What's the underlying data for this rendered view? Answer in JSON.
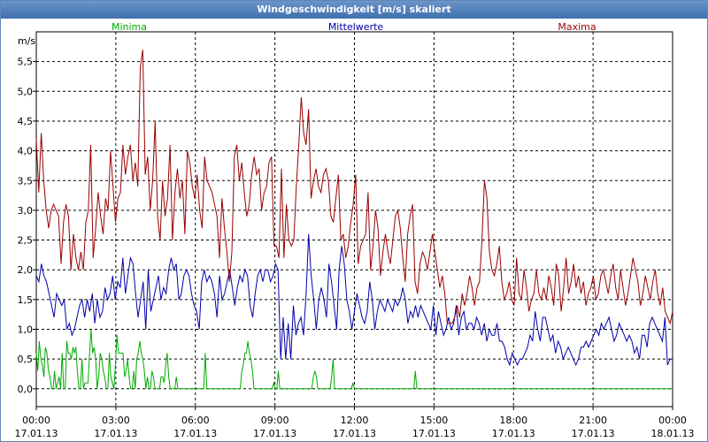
{
  "window": {
    "title": "Windgeschwindigkeit [m/s] skaliert"
  },
  "colors": {
    "minima": "#00aa00",
    "mittelwerte": "#0000aa",
    "maxima": "#990000",
    "grid": "#000000"
  },
  "chart_data": {
    "type": "line",
    "title": "Windgeschwindigkeit [m/s] skaliert",
    "ylabel": "m/s",
    "xlabel": "",
    "ylim": [
      -0.3,
      6.0
    ],
    "xlim": [
      "17.01.13 00:00",
      "18.01.13 00:00"
    ],
    "grid": true,
    "legend_placement": "top",
    "y_ticks": [
      "0,0",
      "0,5",
      "1,0",
      "1,5",
      "2,0",
      "2,5",
      "3,0",
      "3,5",
      "4,0",
      "4,5",
      "5,0",
      "5,5"
    ],
    "x_ticks": [
      {
        "time": "00:00",
        "date": "17.01.13"
      },
      {
        "time": "03:00",
        "date": "17.01.13"
      },
      {
        "time": "06:00",
        "date": "17.01.13"
      },
      {
        "time": "09:00",
        "date": "17.01.13"
      },
      {
        "time": "12:00",
        "date": "17.01.13"
      },
      {
        "time": "15:00",
        "date": "17.01.13"
      },
      {
        "time": "18:00",
        "date": "17.01.13"
      },
      {
        "time": "21:00",
        "date": "17.01.13"
      },
      {
        "time": "00:00",
        "date": "18.01.13"
      }
    ],
    "x_start": "17.01.13 00:00",
    "x_step": "10 min",
    "series": [
      {
        "name": "Minima",
        "color": "#00aa00",
        "values": [
          0.6,
          0.3,
          0.8,
          0.5,
          0.4,
          0.2,
          0.7,
          0.6,
          0.3,
          0.2,
          0.0,
          0.0,
          0.3,
          0.0,
          0.1,
          0.2,
          0.0,
          0.6,
          0.0,
          0.0,
          0.8,
          0.6,
          0.6,
          0.5,
          0.7,
          0.6,
          0.7,
          0.3,
          0.0,
          0.0,
          0.5,
          0.0,
          0.1,
          0.1,
          0.1,
          0.6,
          1.0,
          0.6,
          0.7,
          0.5,
          0.0,
          0.2,
          0.6,
          0.5,
          0.3,
          0.2,
          0.0,
          0.0,
          0.6,
          0.2,
          0.1,
          0.0,
          0.4,
          0.9,
          0.6,
          0.6,
          0.6,
          0.6,
          0.2,
          0.3,
          0.5,
          0.2,
          0.0,
          0.0,
          0.3,
          0.0,
          0.5,
          0.6,
          0.8,
          0.6,
          0.5,
          0.3,
          0.0,
          0.2,
          0.0,
          0.0,
          0.3,
          0.2,
          0.0,
          0.0,
          0.0,
          0.0,
          0.2,
          0.2,
          0.1,
          0.4,
          0.6,
          0.2,
          0.0,
          0.0,
          0.0,
          0.0,
          0.2,
          0.0,
          0.0,
          0.0,
          0.0,
          0.0,
          0.0,
          0.0,
          0.0,
          0.0,
          0.0,
          0.0,
          0.0,
          0.0,
          0.0,
          0.0,
          0.0,
          0.0,
          0.0,
          0.6,
          0.0,
          0.0,
          0.0,
          0.0,
          0.0,
          0.0,
          0.0,
          0.0,
          0.0,
          0.0,
          0.0,
          0.0,
          0.0,
          0.0,
          0.0,
          0.0,
          0.0,
          0.0,
          0.0,
          0.0,
          0.0,
          0.0,
          0.0,
          0.3,
          0.4,
          0.6,
          0.6,
          0.8,
          0.6,
          0.5,
          0.3,
          0.0,
          0.0,
          0.0,
          0.0,
          0.0,
          0.0,
          0.0,
          0.0,
          0.0,
          0.0,
          0.0,
          0.0,
          0.0,
          0.1,
          0.0,
          0.0,
          0.3,
          0.0,
          0.0,
          0.0,
          0.0,
          0.0,
          0.0,
          0.0,
          0.0,
          0.0,
          0.0,
          0.0,
          0.0,
          0.0,
          0.0,
          0.0,
          0.0,
          0.0,
          0.0,
          0.0,
          0.0,
          0.0,
          0.0,
          0.2,
          0.3,
          0.2,
          0.0,
          0.0,
          0.0,
          0.0,
          0.0,
          0.0,
          0.0,
          0.0,
          0.0,
          0.2,
          0.5,
          0.0,
          0.0,
          0.0,
          0.0,
          0.0,
          0.0,
          0.0,
          0.0,
          0.0,
          0.0,
          0.0,
          0.0,
          0.1,
          0.0,
          0.0,
          0.0,
          0.0,
          0.0,
          0.0,
          0.0,
          0.0,
          0.0,
          0.0,
          0.0,
          0.0,
          0.0,
          0.0,
          0.0,
          0.0,
          0.0,
          0.0,
          0.0,
          0.0,
          0.0,
          0.0,
          0.0,
          0.0,
          0.0,
          0.0,
          0.0,
          0.0,
          0.0,
          0.0,
          0.0,
          0.0,
          0.0,
          0.0,
          0.0,
          0.0,
          0.0,
          0.0,
          0.0,
          0.0,
          0.3,
          0.0,
          0.0,
          0.0,
          0.0,
          0.0,
          0.0,
          0.0,
          0.0,
          0.0,
          0.0,
          0.0,
          0.0,
          0.0,
          0.0,
          0.0,
          0.0,
          0.0,
          0.0,
          0.0,
          0.0,
          0.0,
          0.0,
          0.0,
          0.0,
          0.0,
          0.0,
          0.0,
          0.0,
          0.0,
          0.0,
          0.0,
          0.0,
          0.0,
          0.0,
          0.0,
          0.0,
          0.0,
          0.0,
          0.0,
          0.0,
          0.0,
          0.0,
          0.0,
          0.0,
          0.0,
          0.0,
          0.0,
          0.0,
          0.0,
          0.0,
          0.0,
          0.0,
          0.0,
          0.0,
          0.0,
          0.0,
          0.0,
          0.0,
          0.0,
          0.0,
          0.0,
          0.0,
          0.0,
          0.0,
          0.0,
          0.0,
          0.0,
          0.0,
          0.0,
          0.0,
          0.0,
          0.0,
          0.0,
          0.0,
          0.0,
          0.0,
          0.0,
          0.0,
          0.0,
          0.0,
          0.0,
          0.0,
          0.0,
          0.0,
          0.0,
          0.0,
          0.0,
          0.0,
          0.0,
          0.0,
          0.0,
          0.0,
          0.0,
          0.0,
          0.0,
          0.0,
          0.0,
          0.0,
          0.0,
          0.0,
          0.0,
          0.0,
          0.0,
          0.0,
          0.0,
          0.0,
          0.0,
          0.0,
          0.0,
          0.0,
          0.0,
          0.0,
          0.0,
          0.0,
          0.0,
          0.0,
          0.0,
          0.0,
          0.0,
          0.0,
          0.0,
          0.0,
          0.0,
          0.0,
          0.0,
          0.0,
          0.0,
          0.0,
          0.0,
          0.0,
          0.0,
          0.0,
          0.0,
          0.0,
          0.0,
          0.0,
          0.0,
          0.0,
          0.0,
          0.0,
          0.0,
          0.0,
          0.0,
          0.0,
          0.0,
          0.0,
          0.0,
          0.0,
          0.0,
          0.0,
          0.0,
          0.0,
          0.0,
          0.0,
          0.0,
          0.0,
          0.0,
          0.0,
          0.0,
          0.0,
          0.0,
          0.0,
          0.0,
          0.0,
          0.0,
          0.0,
          0.0,
          0.0,
          0.0
        ]
      },
      {
        "name": "Mittelwerte",
        "color": "#0000aa",
        "values": [
          1.9,
          1.8,
          2.1,
          1.9,
          1.8,
          1.6,
          1.4,
          1.2,
          1.6,
          1.5,
          1.4,
          1.5,
          1.0,
          1.1,
          0.9,
          1.0,
          1.2,
          1.4,
          1.5,
          1.2,
          1.5,
          1.3,
          1.6,
          1.1,
          1.5,
          1.2,
          1.3,
          1.7,
          1.5,
          1.6,
          1.9,
          1.5,
          1.8,
          1.7,
          2.2,
          1.6,
          1.9,
          2.2,
          2.1,
          1.6,
          1.2,
          1.5,
          1.8,
          1.0,
          2.0,
          1.3,
          1.5,
          1.7,
          1.9,
          1.5,
          1.7,
          1.6,
          2.0,
          2.2,
          2.0,
          2.1,
          1.5,
          1.6,
          1.9,
          2.0,
          1.9,
          1.6,
          1.4,
          1.3,
          1.0,
          1.8,
          2.0,
          1.8,
          1.9,
          1.8,
          1.6,
          1.2,
          1.9,
          1.5,
          1.6,
          1.8,
          2.0,
          1.7,
          1.4,
          1.7,
          1.9,
          1.8,
          2.0,
          1.9,
          1.4,
          1.2,
          1.6,
          1.9,
          2.0,
          1.8,
          2.0,
          2.0,
          1.8,
          1.9,
          2.1,
          2.0,
          0.5,
          1.2,
          0.5,
          1.1,
          0.5,
          1.4,
          0.9,
          1.1,
          1.2,
          0.9,
          1.6,
          2.6,
          1.9,
          1.5,
          1.0,
          1.5,
          1.7,
          1.5,
          1.2,
          2.1,
          1.8,
          1.4,
          1.0,
          2.0,
          2.4,
          2.1,
          1.5,
          1.3,
          1.0,
          1.3,
          1.6,
          1.4,
          1.2,
          1.1,
          1.3,
          1.8,
          1.5,
          1.0,
          1.3,
          1.5,
          1.4,
          1.3,
          1.5,
          1.4,
          1.3,
          1.5,
          1.4,
          1.5,
          1.7,
          1.5,
          1.1,
          1.3,
          1.2,
          1.4,
          1.2,
          1.4,
          1.3,
          1.2,
          1.1,
          1.0,
          1.4,
          0.9,
          1.3,
          1.1,
          0.9,
          1.0,
          1.2,
          1.0,
          1.1,
          1.4,
          0.9,
          1.2,
          1.3,
          1.0,
          1.1,
          1.1,
          1.0,
          1.2,
          1.1,
          0.9,
          1.1,
          0.8,
          1.0,
          0.9,
          0.9,
          1.1,
          0.8,
          0.8,
          0.7,
          0.5,
          0.4,
          0.6,
          0.5,
          0.4,
          0.5,
          0.5,
          0.6,
          0.7,
          0.9,
          0.8,
          1.3,
          1.0,
          0.8,
          1.2,
          1.2,
          1.0,
          0.8,
          0.9,
          0.6,
          0.8,
          0.7,
          0.5,
          0.6,
          0.7,
          0.6,
          0.5,
          0.4,
          0.5,
          0.7,
          0.7,
          0.8,
          0.7,
          0.8,
          0.9,
          1.0,
          0.9,
          1.1,
          1.0,
          1.1,
          1.2,
          1.0,
          0.8,
          0.9,
          1.1,
          1.0,
          0.9,
          0.8,
          0.9,
          0.8,
          0.6,
          0.7,
          0.5,
          0.9,
          0.9,
          0.7,
          1.1,
          1.2,
          1.1,
          1.0,
          0.9,
          0.8,
          1.2,
          0.4,
          0.5,
          0.5
        ]
      },
      {
        "name": "Maxima",
        "color": "#990000",
        "values": [
          4.2,
          3.3,
          4.3,
          3.5,
          3.0,
          2.7,
          3.0,
          3.1,
          3.0,
          2.9,
          2.1,
          2.8,
          3.1,
          2.9,
          2.0,
          2.6,
          2.2,
          2.0,
          2.3,
          2.0,
          2.8,
          3.0,
          4.1,
          2.2,
          2.7,
          3.3,
          2.9,
          2.6,
          3.2,
          3.0,
          4.0,
          3.4,
          2.8,
          3.2,
          3.3,
          4.1,
          3.6,
          3.9,
          4.1,
          3.5,
          3.8,
          3.4,
          5.4,
          5.7,
          3.6,
          3.9,
          3.0,
          3.5,
          4.5,
          2.9,
          2.5,
          3.5,
          2.9,
          3.2,
          4.1,
          2.5,
          3.3,
          3.7,
          3.2,
          3.5,
          2.6,
          4.0,
          3.8,
          3.4,
          3.2,
          3.6,
          3.0,
          2.7,
          3.9,
          3.5,
          3.4,
          3.3,
          3.1,
          2.9,
          2.2,
          3.2,
          2.7,
          2.3,
          1.8,
          2.3,
          3.9,
          4.1,
          3.5,
          3.8,
          3.3,
          2.9,
          3.1,
          3.6,
          3.9,
          3.6,
          3.7,
          3.0,
          3.3,
          3.4,
          3.8,
          3.9,
          2.4,
          2.4,
          2.2,
          3.7,
          2.2,
          3.1,
          2.5,
          2.4,
          2.5,
          3.4,
          4.1,
          4.9,
          4.3,
          4.1,
          4.7,
          3.2,
          3.5,
          3.7,
          3.4,
          3.3,
          3.6,
          3.7,
          3.5,
          2.9,
          2.8,
          3.2,
          3.6,
          2.5,
          2.6,
          2.2,
          2.4,
          2.8,
          3.1,
          3.6,
          2.1,
          2.4,
          2.5,
          2.6,
          3.3,
          2.0,
          2.4,
          3.0,
          2.7,
          1.9,
          2.3,
          2.6,
          2.3,
          2.1,
          2.5,
          2.9,
          3.0,
          2.7,
          2.2,
          1.8,
          2.6,
          2.9,
          3.1,
          1.8,
          1.6,
          2.1,
          2.3,
          2.2,
          2.0,
          2.3,
          2.6,
          2.3,
          2.0,
          1.7,
          1.9,
          1.6,
          1.1,
          1.1,
          1.1,
          1.2,
          1.4,
          1.2,
          1.6,
          1.4,
          1.6,
          1.9,
          1.7,
          1.4,
          1.7,
          1.8,
          2.5,
          3.5,
          3.2,
          2.3,
          2.0,
          1.9,
          2.1,
          2.4,
          1.8,
          1.5,
          1.6,
          1.8,
          1.5,
          1.4,
          2.2,
          1.6,
          1.5,
          2.0,
          1.7,
          1.3,
          1.5,
          1.6,
          2.0,
          1.6,
          1.5,
          1.7,
          1.5,
          1.9,
          1.7,
          1.4,
          2.1,
          1.9,
          1.3,
          1.7,
          2.2,
          1.6,
          1.8,
          2.1,
          1.7,
          1.9,
          1.6,
          1.8,
          1.4,
          1.6,
          1.7,
          1.9,
          1.5,
          1.6,
          1.9,
          2.0,
          1.8,
          1.6,
          1.9,
          2.1,
          1.7,
          1.5,
          2.0,
          1.7,
          1.4,
          1.6,
          1.9,
          2.2,
          2.0,
          1.8,
          1.4,
          1.6,
          1.9,
          1.7,
          1.5,
          1.8,
          2.0,
          1.6,
          1.4,
          1.7,
          1.3,
          1.2,
          1.1,
          1.3
        ]
      }
    ]
  }
}
